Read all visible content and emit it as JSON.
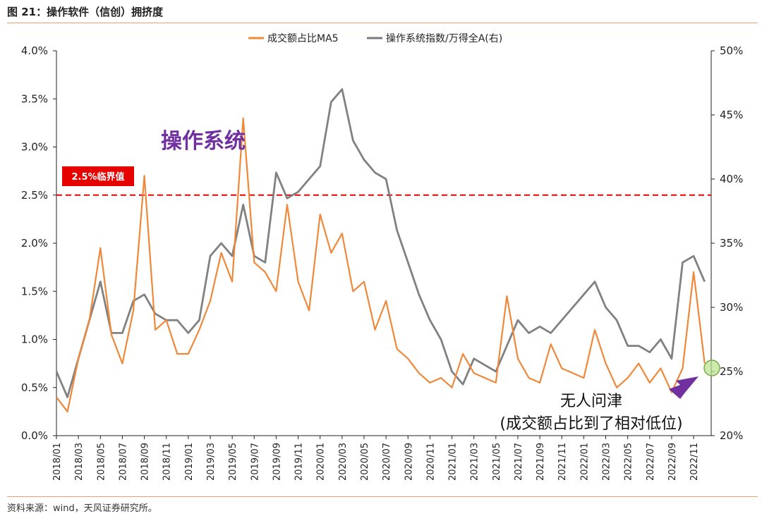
{
  "figure_title": "图 21：操作软件（信创）拥挤度",
  "source_note": "资料来源：wind，天风证券研究所。",
  "colors": {
    "orange": "#f0883a",
    "gray": "#7a7a7a",
    "red": "#e60000",
    "purple": "#7030a0",
    "rule": "#e8a070"
  },
  "chart_data": {
    "type": "line",
    "title": "",
    "legend": {
      "placement": "top-center",
      "entries": [
        "成交额占比MA5",
        "操作系统指数/万得全A(右)"
      ]
    },
    "x_ticks": [
      "2018/01",
      "2018/03",
      "2018/05",
      "2018/07",
      "2018/09",
      "2018/11",
      "2019/01",
      "2019/03",
      "2019/05",
      "2019/07",
      "2019/09",
      "2019/11",
      "2020/01",
      "2020/03",
      "2020/05",
      "2020/07",
      "2020/09",
      "2020/11",
      "2021/01",
      "2021/03",
      "2021/05",
      "2021/07",
      "2021/09",
      "2021/11",
      "2022/01",
      "2022/03",
      "2022/05",
      "2022/07",
      "2022/09",
      "2022/11"
    ],
    "y_left": {
      "ticks": [
        "0.0%",
        "0.5%",
        "1.0%",
        "1.5%",
        "2.0%",
        "2.5%",
        "3.0%",
        "3.5%",
        "4.0%"
      ],
      "range": [
        0,
        4.0
      ]
    },
    "y_right": {
      "ticks": [
        "20%",
        "25%",
        "30%",
        "35%",
        "40%",
        "45%",
        "50%"
      ],
      "range": [
        20,
        50
      ]
    },
    "series": [
      {
        "name": "成交额占比MA5",
        "axis": "left",
        "points": [
          [
            "2018/01",
            0.4
          ],
          [
            "2018/02",
            0.25
          ],
          [
            "2018/03",
            0.8
          ],
          [
            "2018/04",
            1.2
          ],
          [
            "2018/05",
            1.95
          ],
          [
            "2018/06",
            1.05
          ],
          [
            "2018/07",
            0.75
          ],
          [
            "2018/08",
            1.3
          ],
          [
            "2018/09",
            2.7
          ],
          [
            "2018/10",
            1.1
          ],
          [
            "2018/11",
            1.2
          ],
          [
            "2018/12",
            0.85
          ],
          [
            "2019/01",
            0.85
          ],
          [
            "2019/02",
            1.1
          ],
          [
            "2019/03",
            1.4
          ],
          [
            "2019/04",
            1.9
          ],
          [
            "2019/05",
            1.6
          ],
          [
            "2019/06",
            3.3
          ],
          [
            "2019/07",
            1.8
          ],
          [
            "2019/08",
            1.7
          ],
          [
            "2019/09",
            1.5
          ],
          [
            "2019/10",
            2.4
          ],
          [
            "2019/11",
            1.6
          ],
          [
            "2019/12",
            1.3
          ],
          [
            "2020/01",
            2.3
          ],
          [
            "2020/02",
            1.9
          ],
          [
            "2020/03",
            2.1
          ],
          [
            "2020/04",
            1.5
          ],
          [
            "2020/05",
            1.6
          ],
          [
            "2020/06",
            1.1
          ],
          [
            "2020/07",
            1.4
          ],
          [
            "2020/08",
            0.9
          ],
          [
            "2020/09",
            0.8
          ],
          [
            "2020/10",
            0.65
          ],
          [
            "2020/11",
            0.55
          ],
          [
            "2020/12",
            0.6
          ],
          [
            "2021/01",
            0.5
          ],
          [
            "2021/02",
            0.85
          ],
          [
            "2021/03",
            0.65
          ],
          [
            "2021/04",
            0.6
          ],
          [
            "2021/05",
            0.55
          ],
          [
            "2021/06",
            1.45
          ],
          [
            "2021/07",
            0.8
          ],
          [
            "2021/08",
            0.6
          ],
          [
            "2021/09",
            0.55
          ],
          [
            "2021/10",
            0.95
          ],
          [
            "2021/11",
            0.7
          ],
          [
            "2021/12",
            0.65
          ],
          [
            "2022/01",
            0.6
          ],
          [
            "2022/02",
            1.1
          ],
          [
            "2022/03",
            0.75
          ],
          [
            "2022/04",
            0.5
          ],
          [
            "2022/05",
            0.6
          ],
          [
            "2022/06",
            0.75
          ],
          [
            "2022/07",
            0.55
          ],
          [
            "2022/08",
            0.7
          ],
          [
            "2022/09",
            0.45
          ],
          [
            "2022/10",
            0.7
          ],
          [
            "2022/11",
            1.7
          ],
          [
            "2022/12",
            0.75
          ]
        ]
      },
      {
        "name": "操作系统指数/万得全A(右)",
        "axis": "right",
        "points": [
          [
            "2018/01",
            25
          ],
          [
            "2018/02",
            23
          ],
          [
            "2018/03",
            26
          ],
          [
            "2018/04",
            29
          ],
          [
            "2018/05",
            32
          ],
          [
            "2018/06",
            28
          ],
          [
            "2018/07",
            28
          ],
          [
            "2018/08",
            30.5
          ],
          [
            "2018/09",
            31
          ],
          [
            "2018/10",
            29.5
          ],
          [
            "2018/11",
            29
          ],
          [
            "2018/12",
            29
          ],
          [
            "2019/01",
            28
          ],
          [
            "2019/02",
            29
          ],
          [
            "2019/03",
            34
          ],
          [
            "2019/04",
            35
          ],
          [
            "2019/05",
            34
          ],
          [
            "2019/06",
            38
          ],
          [
            "2019/07",
            34
          ],
          [
            "2019/08",
            33.5
          ],
          [
            "2019/09",
            40.5
          ],
          [
            "2019/10",
            38.5
          ],
          [
            "2019/11",
            39
          ],
          [
            "2019/12",
            40
          ],
          [
            "2020/01",
            41
          ],
          [
            "2020/02",
            46
          ],
          [
            "2020/03",
            47
          ],
          [
            "2020/04",
            43
          ],
          [
            "2020/05",
            41.5
          ],
          [
            "2020/06",
            40.5
          ],
          [
            "2020/07",
            40
          ],
          [
            "2020/08",
            36
          ],
          [
            "2020/09",
            33.5
          ],
          [
            "2020/10",
            31
          ],
          [
            "2020/11",
            29
          ],
          [
            "2020/12",
            27.5
          ],
          [
            "2021/01",
            25
          ],
          [
            "2021/02",
            24
          ],
          [
            "2021/03",
            26
          ],
          [
            "2021/04",
            25.5
          ],
          [
            "2021/05",
            25
          ],
          [
            "2021/06",
            27
          ],
          [
            "2021/07",
            29
          ],
          [
            "2021/08",
            28
          ],
          [
            "2021/09",
            28.5
          ],
          [
            "2021/10",
            28
          ],
          [
            "2021/11",
            29
          ],
          [
            "2021/12",
            30
          ],
          [
            "2022/01",
            31
          ],
          [
            "2022/02",
            32
          ],
          [
            "2022/03",
            30
          ],
          [
            "2022/04",
            29
          ],
          [
            "2022/05",
            27
          ],
          [
            "2022/06",
            27
          ],
          [
            "2022/07",
            26.5
          ],
          [
            "2022/08",
            27.5
          ],
          [
            "2022/09",
            26
          ],
          [
            "2022/10",
            33.5
          ],
          [
            "2022/11",
            34
          ],
          [
            "2022/12",
            32
          ]
        ]
      }
    ],
    "reference_line": {
      "value": 2.5,
      "axis": "left",
      "label": "2.5%临界值",
      "style": "dashed"
    },
    "annotations": [
      {
        "text": "操作系统"
      },
      {
        "text": "无人问津"
      },
      {
        "text": "(成交额占比到了相对低位)"
      }
    ],
    "grid": false
  }
}
